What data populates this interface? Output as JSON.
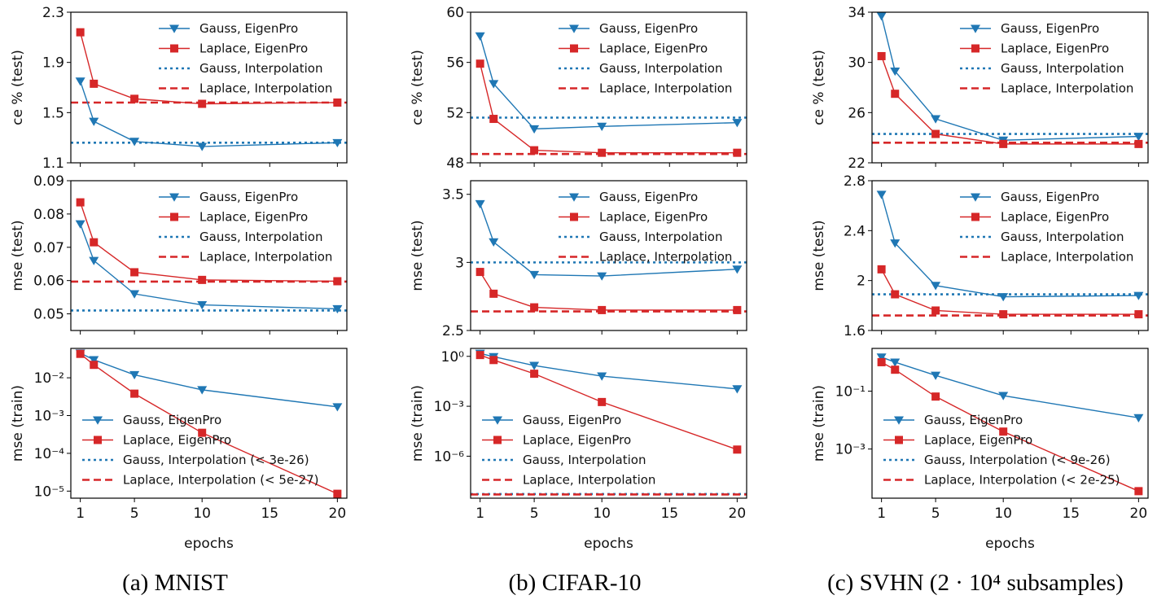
{
  "colors": {
    "gauss": "#1f77b4",
    "laplace": "#d62728"
  },
  "captions": [
    "(a) MNIST",
    "(b) CIFAR-10",
    "(c) SVHN (2 · 10⁴ subsamples)"
  ],
  "chart_data": [
    {
      "type": "line",
      "panel": "MNIST test ce",
      "ylabel": "ce % (test)",
      "xlabel": "",
      "x": [
        1,
        2,
        5,
        10,
        20
      ],
      "ylim": [
        1.1,
        2.3
      ],
      "yticks": [
        1.1,
        1.5,
        1.9,
        2.3
      ],
      "yscale": "linear",
      "xticks": [
        1,
        5,
        10,
        15,
        20
      ],
      "legend": "top-right",
      "series": [
        {
          "name": "Gauss, EigenPro",
          "values": [
            1.75,
            1.43,
            1.27,
            1.23,
            1.26
          ]
        },
        {
          "name": "Laplace, EigenPro",
          "values": [
            2.14,
            1.73,
            1.61,
            1.57,
            1.58
          ]
        }
      ],
      "hlines": [
        {
          "name": "Gauss, Interpolation",
          "value": 1.26
        },
        {
          "name": "Laplace, Interpolation",
          "value": 1.58
        }
      ]
    },
    {
      "type": "line",
      "panel": "MNIST test mse",
      "ylabel": "mse (test)",
      "xlabel": "",
      "x": [
        1,
        2,
        5,
        10,
        20
      ],
      "ylim": [
        0.045,
        0.09
      ],
      "yticks": [
        0.05,
        0.06,
        0.07,
        0.08,
        0.09
      ],
      "yscale": "linear",
      "xticks": [
        1,
        5,
        10,
        15,
        20
      ],
      "legend": "top-right",
      "series": [
        {
          "name": "Gauss, EigenPro",
          "values": [
            0.077,
            0.066,
            0.056,
            0.0527,
            0.0515
          ]
        },
        {
          "name": "Laplace, EigenPro",
          "values": [
            0.0835,
            0.0715,
            0.0625,
            0.0602,
            0.0598
          ]
        }
      ],
      "hlines": [
        {
          "name": "Gauss, Interpolation",
          "value": 0.051
        },
        {
          "name": "Laplace, Interpolation",
          "value": 0.0597
        }
      ]
    },
    {
      "type": "line",
      "panel": "MNIST train mse",
      "ylabel": "mse (train)",
      "xlabel": "epochs",
      "x": [
        1,
        2,
        5,
        10,
        20
      ],
      "ylim": [
        6.5e-06,
        0.06
      ],
      "yticks": [
        1e-05,
        0.0001,
        0.001,
        0.01
      ],
      "yticklabels": [
        "10⁻⁵",
        "10⁻⁴",
        "10⁻³",
        "10⁻²"
      ],
      "yscale": "log",
      "xticks": [
        1,
        5,
        10,
        15,
        20
      ],
      "legend": "lower-left",
      "series": [
        {
          "name": "Gauss, EigenPro",
          "values": [
            0.045,
            0.03,
            0.012,
            0.0048,
            0.0017
          ]
        },
        {
          "name": "Laplace, EigenPro",
          "values": [
            0.043,
            0.022,
            0.0038,
            0.00035,
            8.5e-06
          ]
        }
      ],
      "hlines": [
        {
          "name": "Gauss, Interpolation (< 3e-26)",
          "value": null
        },
        {
          "name": "Laplace, Interpolation (< 5e-27)",
          "value": null
        }
      ]
    },
    {
      "type": "line",
      "panel": "CIFAR-10 test ce",
      "ylabel": "ce % (test)",
      "xlabel": "",
      "x": [
        1,
        2,
        5,
        10,
        20
      ],
      "ylim": [
        48,
        60
      ],
      "yticks": [
        48,
        52,
        56,
        60
      ],
      "yscale": "linear",
      "xticks": [
        1,
        5,
        10,
        15,
        20
      ],
      "legend": "top-right",
      "series": [
        {
          "name": "Gauss, EigenPro",
          "values": [
            58.1,
            54.3,
            50.7,
            50.9,
            51.2
          ]
        },
        {
          "name": "Laplace, EigenPro",
          "values": [
            55.9,
            51.5,
            49.0,
            48.8,
            48.8
          ]
        }
      ],
      "hlines": [
        {
          "name": "Gauss, Interpolation",
          "value": 51.6
        },
        {
          "name": "Laplace, Interpolation",
          "value": 48.7
        }
      ]
    },
    {
      "type": "line",
      "panel": "CIFAR-10 test mse",
      "ylabel": "mse (test)",
      "xlabel": "",
      "x": [
        1,
        2,
        5,
        10,
        20
      ],
      "ylim": [
        2.5,
        3.6
      ],
      "yticks": [
        2.5,
        3.0,
        3.5
      ],
      "yscale": "linear",
      "xticks": [
        1,
        5,
        10,
        15,
        20
      ],
      "legend": "top-right",
      "series": [
        {
          "name": "Gauss, EigenPro",
          "values": [
            3.43,
            3.15,
            2.91,
            2.9,
            2.95
          ]
        },
        {
          "name": "Laplace, EigenPro",
          "values": [
            2.93,
            2.77,
            2.67,
            2.65,
            2.65
          ]
        }
      ],
      "hlines": [
        {
          "name": "Gauss, Interpolation",
          "value": 3.0
        },
        {
          "name": "Laplace, Interpolation",
          "value": 2.64
        }
      ]
    },
    {
      "type": "line",
      "panel": "CIFAR-10 train mse",
      "ylabel": "mse (train)",
      "xlabel": "epochs",
      "x": [
        1,
        2,
        5,
        10,
        20
      ],
      "ylim": [
        3e-09,
        3
      ],
      "yticks": [
        1e-06,
        0.001,
        1
      ],
      "yticklabels": [
        "10⁻⁶",
        "10⁻³",
        "10⁰"
      ],
      "yscale": "log",
      "xticks": [
        1,
        5,
        10,
        15,
        20
      ],
      "legend": "lower-left",
      "series": [
        {
          "name": "Gauss, EigenPro",
          "values": [
            1.5,
            0.95,
            0.28,
            0.065,
            0.011
          ]
        },
        {
          "name": "Laplace, EigenPro",
          "values": [
            1.2,
            0.6,
            0.09,
            0.0018,
            2.5e-06
          ]
        }
      ],
      "hlines": [
        {
          "name": "Gauss, Interpolation",
          "value": 5.3e-09
        },
        {
          "name": "Laplace, Interpolation",
          "value": 5e-09
        }
      ]
    },
    {
      "type": "line",
      "panel": "SVHN test ce",
      "ylabel": "ce % (test)",
      "xlabel": "",
      "x": [
        1,
        2,
        5,
        10,
        20
      ],
      "ylim": [
        22,
        34
      ],
      "yticks": [
        22,
        26,
        30,
        34
      ],
      "yscale": "linear",
      "xticks": [
        1,
        5,
        10,
        15,
        20
      ],
      "legend": "top-right",
      "series": [
        {
          "name": "Gauss, EigenPro",
          "values": [
            33.7,
            29.3,
            25.5,
            23.8,
            24.1
          ]
        },
        {
          "name": "Laplace, EigenPro",
          "values": [
            30.5,
            27.5,
            24.3,
            23.5,
            23.5
          ]
        }
      ],
      "hlines": [
        {
          "name": "Gauss, Interpolation",
          "value": 24.3
        },
        {
          "name": "Laplace, Interpolation",
          "value": 23.6
        }
      ]
    },
    {
      "type": "line",
      "panel": "SVHN test mse",
      "ylabel": "mse (test)",
      "xlabel": "",
      "x": [
        1,
        2,
        5,
        10,
        20
      ],
      "ylim": [
        1.6,
        2.8
      ],
      "yticks": [
        1.6,
        2.0,
        2.4,
        2.8
      ],
      "yscale": "linear",
      "xticks": [
        1,
        5,
        10,
        15,
        20
      ],
      "legend": "top-right",
      "series": [
        {
          "name": "Gauss, EigenPro",
          "values": [
            2.69,
            2.3,
            1.96,
            1.87,
            1.88
          ]
        },
        {
          "name": "Laplace, EigenPro",
          "values": [
            2.09,
            1.89,
            1.76,
            1.73,
            1.73
          ]
        }
      ],
      "hlines": [
        {
          "name": "Gauss, Interpolation",
          "value": 1.89
        },
        {
          "name": "Laplace, Interpolation",
          "value": 1.72
        }
      ]
    },
    {
      "type": "line",
      "panel": "SVHN train mse",
      "ylabel": "mse (train)",
      "xlabel": "epochs",
      "x": [
        1,
        2,
        5,
        10,
        20
      ],
      "ylim": [
        2e-05,
        3
      ],
      "yticks": [
        0.001,
        0.1
      ],
      "yticklabels": [
        "10⁻³",
        "10⁻¹"
      ],
      "yscale": "log",
      "xticks": [
        1,
        5,
        10,
        15,
        20
      ],
      "legend": "lower-left",
      "series": [
        {
          "name": "Gauss, EigenPro",
          "values": [
            1.5,
            1.0,
            0.35,
            0.07,
            0.012
          ]
        },
        {
          "name": "Laplace, EigenPro",
          "values": [
            1.0,
            0.55,
            0.065,
            0.004,
            3.5e-05
          ]
        }
      ],
      "hlines": [
        {
          "name": "Gauss, Interpolation (< 9e-26)",
          "value": null
        },
        {
          "name": "Laplace, Interpolation (< 2e-25)",
          "value": null
        }
      ]
    }
  ]
}
